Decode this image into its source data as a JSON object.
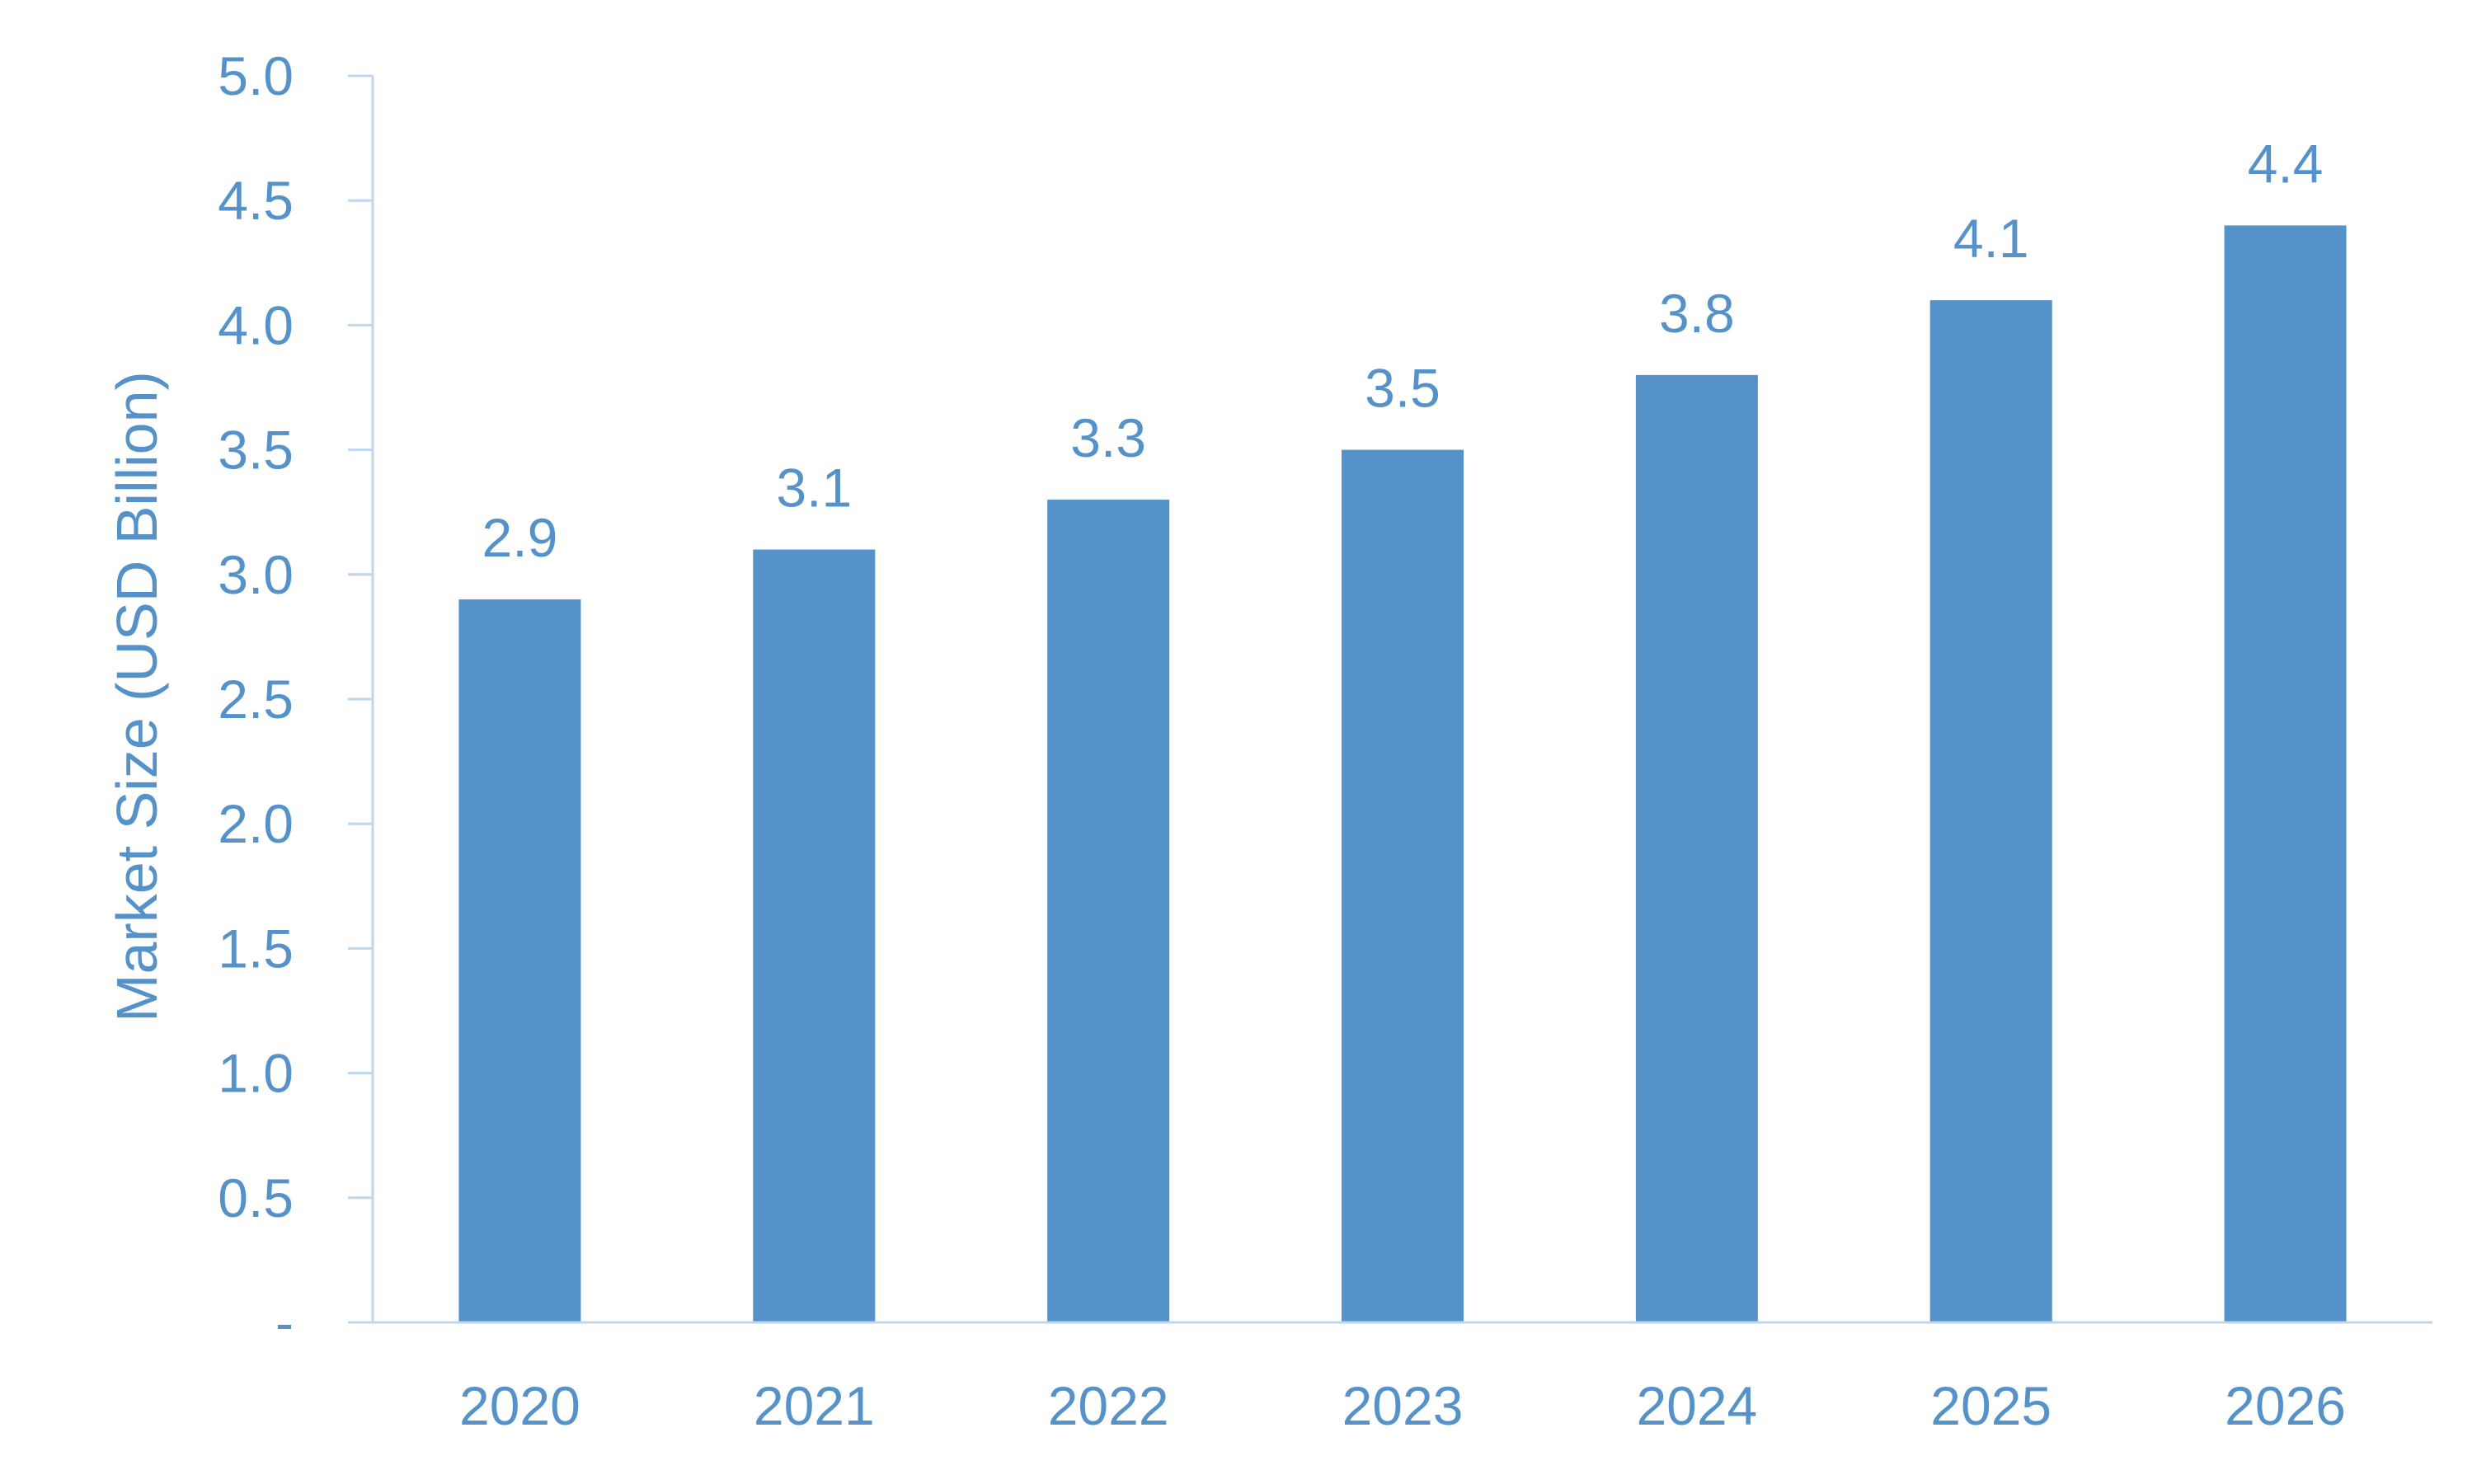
{
  "colors": {
    "bar": "#5592C9",
    "text": "#5592C9",
    "axis": "#BDD7EE"
  },
  "chart_data": {
    "type": "bar",
    "categories": [
      "2020",
      "2021",
      "2022",
      "2023",
      "2024",
      "2025",
      "2026"
    ],
    "values": [
      2.9,
      3.1,
      3.3,
      3.5,
      3.8,
      4.1,
      4.4
    ],
    "data_labels": [
      "2.9",
      "3.1",
      "3.3",
      "3.5",
      "3.8",
      "4.1",
      "4.4"
    ],
    "title": "",
    "xlabel": "",
    "ylabel": "Market Size (USD Billion)",
    "ylim": [
      0,
      5
    ],
    "y_ticks": [
      0,
      0.5,
      1,
      1.5,
      2,
      2.5,
      3,
      3.5,
      4,
      4.5,
      5
    ],
    "y_tick_labels": [
      "-",
      "0.5",
      "1.0",
      "1.5",
      "2.0",
      "2.5",
      "3.0",
      "3.5",
      "4.0",
      "4.5",
      "5.0"
    ],
    "grid": false,
    "legend": "none"
  }
}
